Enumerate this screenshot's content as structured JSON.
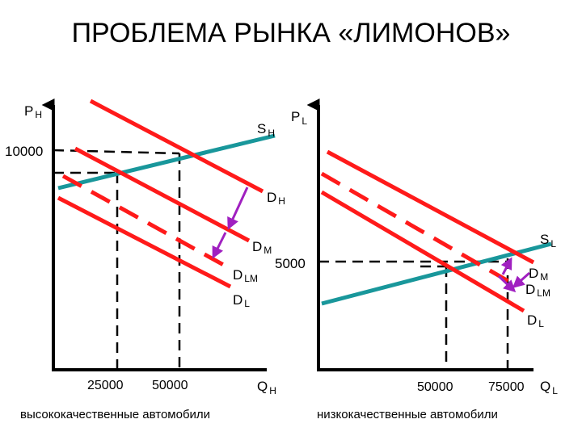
{
  "title": "ПРОБЛЕМА РЫНКА «ЛИМОНОВ»",
  "colors": {
    "demand": "#ff1a1a",
    "supply": "#19979b",
    "arrow": "#a020c0",
    "axis": "#000000"
  },
  "left": {
    "y_axis": {
      "main": "P",
      "sub": "H"
    },
    "x_axis": {
      "main": "Q",
      "sub": "H"
    },
    "price_tick": "10000",
    "qty_ticks": [
      "25000",
      "50000"
    ],
    "curves": {
      "supply": {
        "main": "S",
        "sub": "H"
      },
      "dh": {
        "main": "D",
        "sub": "H"
      },
      "dm": {
        "main": "D",
        "sub": "M"
      },
      "dlm": {
        "main": "D",
        "sub": "LM"
      },
      "dl": {
        "main": "D",
        "sub": "L"
      }
    },
    "caption": "высококачественные автомобили"
  },
  "right": {
    "y_axis": {
      "main": "P",
      "sub": "L"
    },
    "x_axis": {
      "main": "Q",
      "sub": "L"
    },
    "price_tick": "5000",
    "qty_ticks": [
      "50000",
      "75000"
    ],
    "curves": {
      "supply": {
        "main": "S",
        "sub": "L"
      },
      "dm": {
        "main": "D",
        "sub": "M"
      },
      "dlm": {
        "main": "D",
        "sub": "LM"
      },
      "dl": {
        "main": "D",
        "sub": "L"
      }
    },
    "caption": "низкокачественные автомобили"
  }
}
